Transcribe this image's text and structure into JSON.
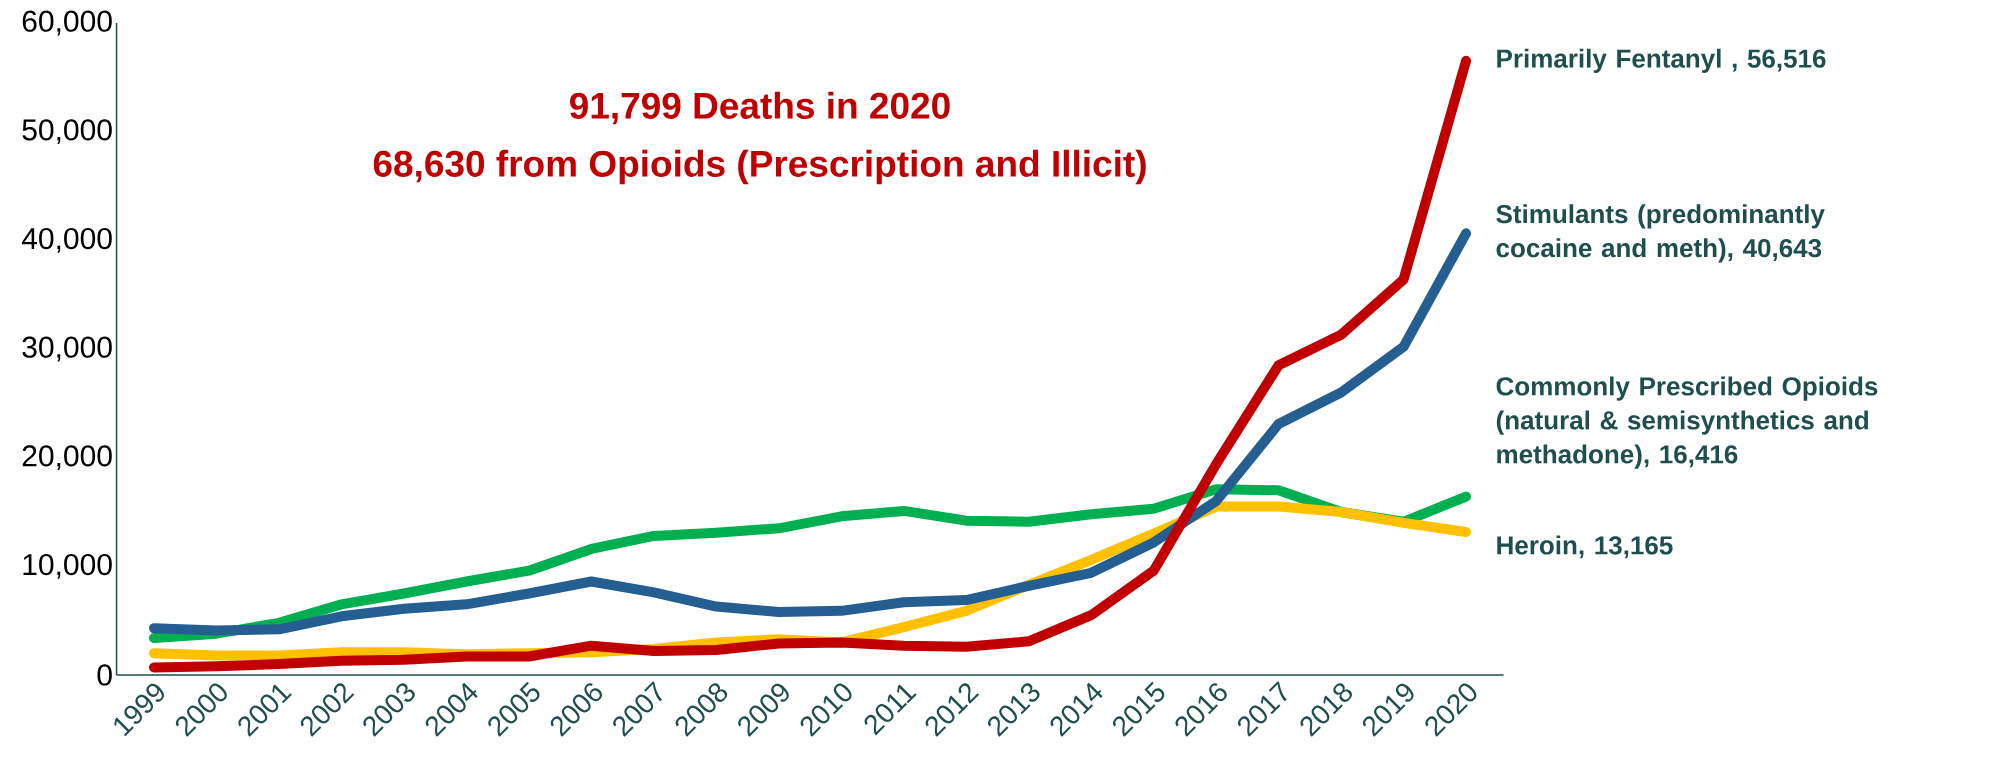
{
  "chart_data": {
    "type": "line",
    "title": "91,799 Deaths in 2020",
    "subtitle": "68,630 from Opioids (Prescription and Illicit)",
    "categories": [
      "1999",
      "2000",
      "2001",
      "2002",
      "2003",
      "2004",
      "2005",
      "2006",
      "2007",
      "2008",
      "2009",
      "2010",
      "2011",
      "2012",
      "2013",
      "2014",
      "2015",
      "2016",
      "2017",
      "2018",
      "2019",
      "2020"
    ],
    "series": [
      {
        "name": "Commonly Prescribed Opioids (natural & semisynthetics and methadone), 16,416",
        "color": "#00b050",
        "values": [
          3400,
          3800,
          4800,
          6500,
          7500,
          8600,
          9600,
          11600,
          12800,
          13100,
          13500,
          14600,
          15100,
          14200,
          14100,
          14800,
          15300,
          17100,
          17000,
          15000,
          14100,
          16416
        ]
      },
      {
        "name": "Heroin, 13,165",
        "color": "#ffc000",
        "values": [
          2000,
          1800,
          1800,
          2100,
          2100,
          1900,
          2000,
          2100,
          2400,
          3000,
          3300,
          3000,
          4400,
          5900,
          8300,
          10600,
          13000,
          15500,
          15500,
          15000,
          14000,
          13165
        ]
      },
      {
        "name": "Stimulants (predominantly cocaine and meth), 40,643",
        "color": "#255e91",
        "values": [
          4300,
          4100,
          4200,
          5400,
          6100,
          6500,
          7500,
          8600,
          7600,
          6300,
          5800,
          5900,
          6700,
          6900,
          8200,
          9400,
          12200,
          16000,
          23100,
          26000,
          30200,
          40643
        ]
      },
      {
        "name": "Primarily Fentanyl , 56,516",
        "color": "#c00000",
        "values": [
          700,
          800,
          1000,
          1300,
          1400,
          1700,
          1700,
          2700,
          2200,
          2300,
          2900,
          3000,
          2700,
          2600,
          3100,
          5500,
          9600,
          19400,
          28500,
          31300,
          36400,
          56516
        ]
      }
    ],
    "ylim": [
      0,
      60000
    ],
    "yticks": [
      {
        "value": 0,
        "label": "0"
      },
      {
        "value": 10000,
        "label": "10,000"
      },
      {
        "value": 20000,
        "label": "20,000"
      },
      {
        "value": 30000,
        "label": "30,000"
      },
      {
        "value": 40000,
        "label": "40,000"
      },
      {
        "value": 50000,
        "label": "50,000"
      },
      {
        "value": 60000,
        "label": "60,000"
      }
    ],
    "grid": false,
    "marker": "none",
    "line_style": "solid"
  }
}
